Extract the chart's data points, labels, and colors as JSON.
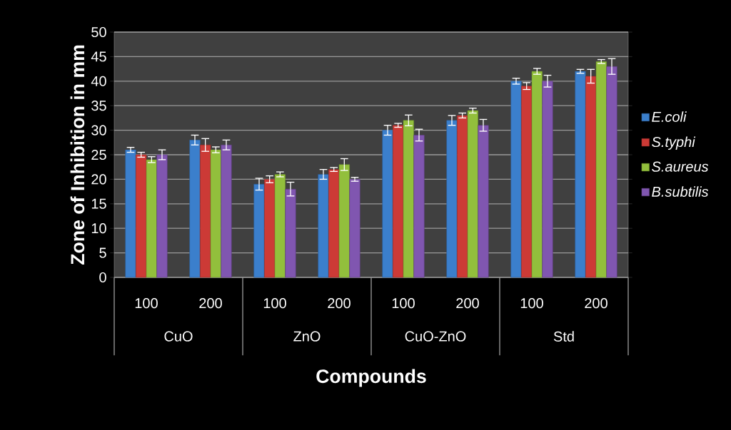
{
  "chart_data": {
    "type": "bar",
    "xlabel": "Compounds",
    "ylabel": "Zone of Inhibition in mm",
    "categories": [
      "100",
      "200",
      "100",
      "200",
      "100",
      "200",
      "100",
      "200"
    ],
    "annotations": [
      "CuO",
      "ZnO",
      "CuO-ZnO",
      "Std"
    ],
    "series": [
      {
        "name": "E.coli",
        "color": "#3b7fcc",
        "values": [
          26,
          28,
          19,
          21,
          30,
          32,
          40,
          42
        ],
        "errors": [
          0.5,
          1,
          1.2,
          1,
          1,
          1,
          0.6,
          0.4
        ]
      },
      {
        "name": "S.typhi",
        "color": "#cc3a36",
        "values": [
          25,
          27,
          20,
          22,
          31,
          33,
          39,
          41
        ],
        "errors": [
          0.5,
          1.3,
          0.7,
          0.4,
          0.4,
          0.5,
          0.7,
          1.4
        ]
      },
      {
        "name": "S.aureus",
        "color": "#92bf3c",
        "values": [
          24,
          26,
          21,
          23,
          32,
          34,
          42,
          44
        ],
        "errors": [
          0.6,
          0.6,
          0.5,
          1.2,
          1.1,
          0.5,
          0.6,
          0.4
        ]
      },
      {
        "name": "B.subtilis",
        "color": "#8056b0",
        "values": [
          25,
          27,
          18,
          20,
          29,
          31,
          40,
          43
        ],
        "errors": [
          1,
          1,
          1.4,
          0.4,
          1.2,
          1.2,
          1.2,
          1.6
        ]
      }
    ],
    "ylim": [
      0,
      50
    ],
    "yticks": [
      0,
      5,
      10,
      15,
      20,
      25,
      30,
      35,
      40,
      45,
      50
    ],
    "grid": "y",
    "legend": "right",
    "marker": "none"
  }
}
